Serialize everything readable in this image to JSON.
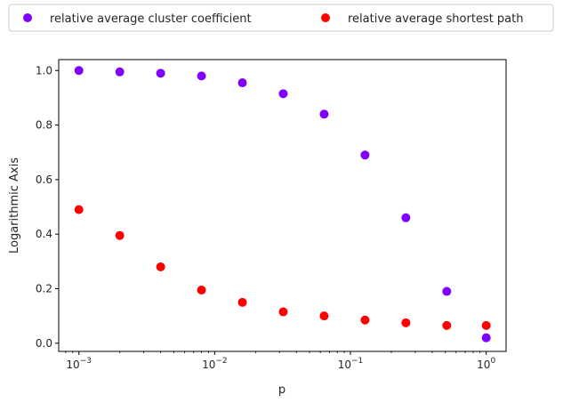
{
  "chart_data": {
    "type": "scatter",
    "xlabel": "p",
    "ylabel": "Logarithmic Axis",
    "xscale": "log",
    "xlim": [
      0.00071,
      1.4
    ],
    "ylim": [
      -0.03,
      1.04
    ],
    "grid": false,
    "legend_placement": "top, above plot, two columns",
    "x_ticks": [
      {
        "value": 0.001,
        "base": "10",
        "exp": "−3"
      },
      {
        "value": 0.01,
        "base": "10",
        "exp": "−2"
      },
      {
        "value": 0.1,
        "base": "10",
        "exp": "−1"
      },
      {
        "value": 1,
        "base": "10",
        "exp": "0"
      }
    ],
    "y_ticks": [
      "0.0",
      "0.2",
      "0.4",
      "0.6",
      "0.8",
      "1.0"
    ],
    "x": [
      0.001,
      0.002,
      0.004,
      0.008,
      0.016,
      0.032,
      0.064,
      0.128,
      0.256,
      0.512,
      1.0
    ],
    "series": [
      {
        "name": "relative average cluster coefficient",
        "color": "#7f00ff",
        "values": [
          1.0,
          0.995,
          0.99,
          0.98,
          0.955,
          0.915,
          0.84,
          0.69,
          0.46,
          0.19,
          0.02
        ]
      },
      {
        "name": "relative average shortest path",
        "color": "#ff0000",
        "values": [
          0.49,
          0.395,
          0.28,
          0.195,
          0.15,
          0.115,
          0.1,
          0.085,
          0.075,
          0.065,
          0.065
        ]
      }
    ]
  }
}
